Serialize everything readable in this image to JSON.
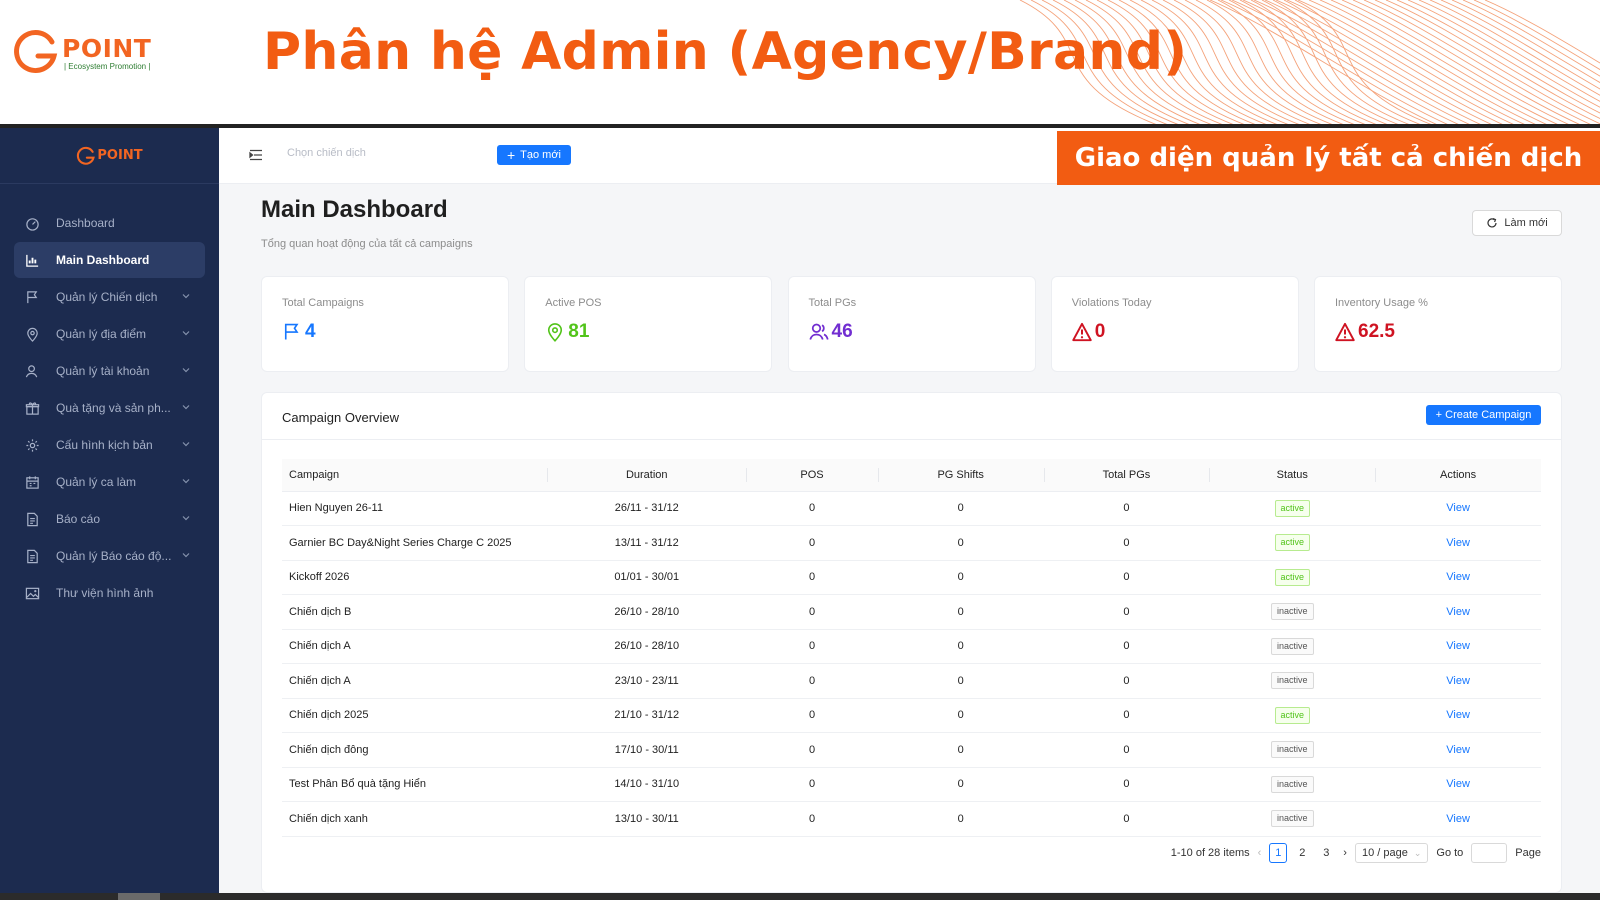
{
  "slide": {
    "brand_word": "POINT",
    "brand_tagline": "| Ecosystem Promotion |",
    "title": "Phân hệ Admin (Agency/Brand)",
    "callout": "Giao diện quản lý tất cả chiến dịch"
  },
  "sidebar": {
    "logo_word": "POINT",
    "items": [
      {
        "label": "Dashboard",
        "icon": "dashboard-icon",
        "active": false,
        "has_children": false
      },
      {
        "label": "Main Dashboard",
        "icon": "chart-icon",
        "active": true,
        "has_children": false
      },
      {
        "label": "Quản lý Chiến dịch",
        "icon": "flag-icon",
        "active": false,
        "has_children": true
      },
      {
        "label": "Quản lý địa điểm",
        "icon": "location-icon",
        "active": false,
        "has_children": true
      },
      {
        "label": "Quản lý tài khoản",
        "icon": "user-icon",
        "active": false,
        "has_children": true
      },
      {
        "label": "Quà tặng và sản ph...",
        "icon": "gift-icon",
        "active": false,
        "has_children": true
      },
      {
        "label": "Cấu hình kịch bản",
        "icon": "gear-icon",
        "active": false,
        "has_children": true
      },
      {
        "label": "Quản lý ca làm",
        "icon": "calendar-icon",
        "active": false,
        "has_children": true
      },
      {
        "label": "Báo cáo",
        "icon": "file-icon",
        "active": false,
        "has_children": true
      },
      {
        "label": "Quản lý Báo cáo độ...",
        "icon": "file-icon",
        "active": false,
        "has_children": true
      },
      {
        "label": "Thư viện hình ảnh",
        "icon": "image-icon",
        "active": false,
        "has_children": false
      }
    ]
  },
  "topbar": {
    "campaign_placeholder": "Chọn chiến dịch",
    "create_label": "Tạo mới"
  },
  "page": {
    "title": "Main Dashboard",
    "subtitle": "Tổng quan hoạt động của tất cả campaigns",
    "refresh_label": "Làm mới"
  },
  "stats": [
    {
      "label": "Total Campaigns",
      "value": "4",
      "icon": "flag-icon",
      "color": "#1677ff"
    },
    {
      "label": "Active POS",
      "value": "81",
      "icon": "location-icon",
      "color": "#52c41a"
    },
    {
      "label": "Total PGs",
      "value": "46",
      "icon": "users-icon",
      "color": "#722ed1"
    },
    {
      "label": "Violations Today",
      "value": "0",
      "icon": "warning-icon",
      "color": "#cf1322"
    },
    {
      "label": "Inventory Usage %",
      "value": "62.5",
      "icon": "warning-icon",
      "color": "#cf1322"
    }
  ],
  "overview": {
    "title": "Campaign Overview",
    "create_label": "+ Create Campaign",
    "columns": [
      "Campaign",
      "Duration",
      "POS",
      "PG Shifts",
      "Total PGs",
      "Status",
      "Actions"
    ],
    "rows": [
      {
        "name": "Hien Nguyen 26-11",
        "duration": "26/11 - 31/12",
        "pos": "0",
        "shifts": "0",
        "pgs": "0",
        "status": "active",
        "action": "View"
      },
      {
        "name": "Garnier BC Day&Night Series Charge C 2025",
        "duration": "13/11 - 31/12",
        "pos": "0",
        "shifts": "0",
        "pgs": "0",
        "status": "active",
        "action": "View"
      },
      {
        "name": "Kickoff 2026",
        "duration": "01/01 - 30/01",
        "pos": "0",
        "shifts": "0",
        "pgs": "0",
        "status": "active",
        "action": "View"
      },
      {
        "name": "Chiến dịch B",
        "duration": "26/10 - 28/10",
        "pos": "0",
        "shifts": "0",
        "pgs": "0",
        "status": "inactive",
        "action": "View"
      },
      {
        "name": "Chiến dịch A",
        "duration": "26/10 - 28/10",
        "pos": "0",
        "shifts": "0",
        "pgs": "0",
        "status": "inactive",
        "action": "View"
      },
      {
        "name": "Chiến dịch A",
        "duration": "23/10 - 23/11",
        "pos": "0",
        "shifts": "0",
        "pgs": "0",
        "status": "inactive",
        "action": "View"
      },
      {
        "name": "Chiến dịch 2025",
        "duration": "21/10 - 31/12",
        "pos": "0",
        "shifts": "0",
        "pgs": "0",
        "status": "active",
        "action": "View"
      },
      {
        "name": "Chiến dịch đông",
        "duration": "17/10 - 30/11",
        "pos": "0",
        "shifts": "0",
        "pgs": "0",
        "status": "inactive",
        "action": "View"
      },
      {
        "name": "Test Phân Bổ quà tặng Hiển",
        "duration": "14/10 - 31/10",
        "pos": "0",
        "shifts": "0",
        "pgs": "0",
        "status": "inactive",
        "action": "View"
      },
      {
        "name": "Chiến dịch xanh",
        "duration": "13/10 - 30/11",
        "pos": "0",
        "shifts": "0",
        "pgs": "0",
        "status": "inactive",
        "action": "View"
      }
    ],
    "pagination": {
      "summary": "1-10 of 28 items",
      "pages": [
        "1",
        "2",
        "3"
      ],
      "current": "1",
      "page_size": "10 / page",
      "goto_label": "Go to",
      "page_label": "Page"
    }
  },
  "colors": {
    "accent_orange": "#f25c12",
    "primary_blue": "#1677ff",
    "sidebar_bg": "#1c2b4f"
  }
}
